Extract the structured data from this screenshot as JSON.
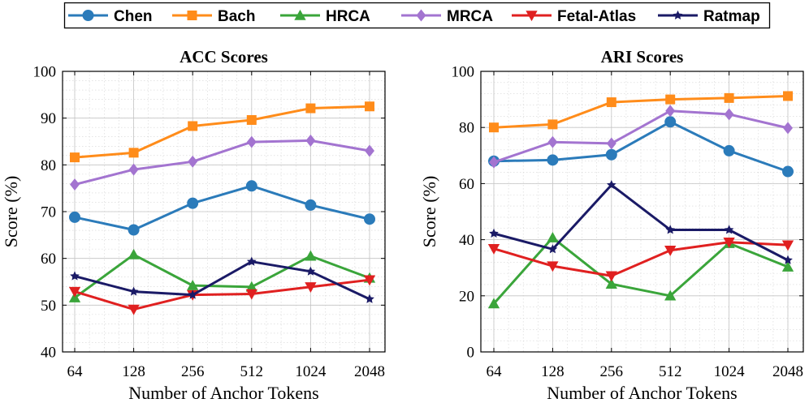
{
  "legend": [
    {
      "name": "Chen",
      "color": "#2b7bba",
      "marker": "circle"
    },
    {
      "name": "Bach",
      "color": "#ff8c1a",
      "marker": "square"
    },
    {
      "name": "HRCA",
      "color": "#3aa53a",
      "marker": "triangle-up"
    },
    {
      "name": "MRCA",
      "color": "#a374d0",
      "marker": "diamond"
    },
    {
      "name": "Fetal-Atlas",
      "color": "#e02020",
      "marker": "triangle-down"
    },
    {
      "name": "Ratmap",
      "color": "#1a1a66",
      "marker": "star"
    }
  ],
  "chart_data": [
    {
      "type": "line",
      "title": "ACC Scores",
      "xlabel": "Number of Anchor Tokens",
      "ylabel": "Score (%)",
      "categories": [
        "64",
        "128",
        "256",
        "512",
        "1024",
        "2048"
      ],
      "ylim": [
        40,
        100
      ],
      "yticks": [
        "40",
        "50",
        "60",
        "70",
        "80",
        "90",
        "100"
      ],
      "grid": true,
      "series": [
        {
          "name": "Chen",
          "values": [
            68.8,
            66.1,
            71.8,
            75.5,
            71.4,
            68.4
          ]
        },
        {
          "name": "Bach",
          "values": [
            81.6,
            82.6,
            88.3,
            89.6,
            92.1,
            92.5
          ]
        },
        {
          "name": "HRCA",
          "values": [
            51.6,
            60.8,
            54.2,
            53.9,
            60.5,
            55.8
          ]
        },
        {
          "name": "MRCA",
          "values": [
            75.8,
            79.0,
            80.7,
            84.9,
            85.2,
            83.0
          ]
        },
        {
          "name": "Fetal-Atlas",
          "values": [
            52.9,
            49.1,
            52.2,
            52.4,
            53.9,
            55.4
          ]
        },
        {
          "name": "Ratmap",
          "values": [
            56.2,
            52.9,
            52.2,
            59.3,
            57.2,
            51.3
          ]
        }
      ]
    },
    {
      "type": "line",
      "title": "ARI Scores",
      "xlabel": "Number of Anchor Tokens",
      "ylabel": "Score (%)",
      "categories": [
        "64",
        "128",
        "256",
        "512",
        "1024",
        "2048"
      ],
      "ylim": [
        0,
        100
      ],
      "yticks": [
        "0",
        "20",
        "40",
        "60",
        "80",
        "100"
      ],
      "grid": true,
      "series": [
        {
          "name": "Chen",
          "values": [
            68.0,
            68.4,
            70.3,
            82.0,
            71.7,
            64.3
          ]
        },
        {
          "name": "Bach",
          "values": [
            80.0,
            81.1,
            89.0,
            90.0,
            90.5,
            91.2
          ]
        },
        {
          "name": "HRCA",
          "values": [
            17.2,
            40.7,
            24.2,
            20.0,
            38.7,
            30.3
          ]
        },
        {
          "name": "MRCA",
          "values": [
            67.6,
            74.8,
            74.3,
            85.9,
            84.7,
            79.8
          ]
        },
        {
          "name": "Fetal-Atlas",
          "values": [
            36.8,
            30.6,
            27.1,
            36.2,
            39.1,
            38.1
          ]
        },
        {
          "name": "Ratmap",
          "values": [
            42.2,
            36.6,
            59.5,
            43.5,
            43.5,
            32.7
          ]
        }
      ]
    }
  ]
}
